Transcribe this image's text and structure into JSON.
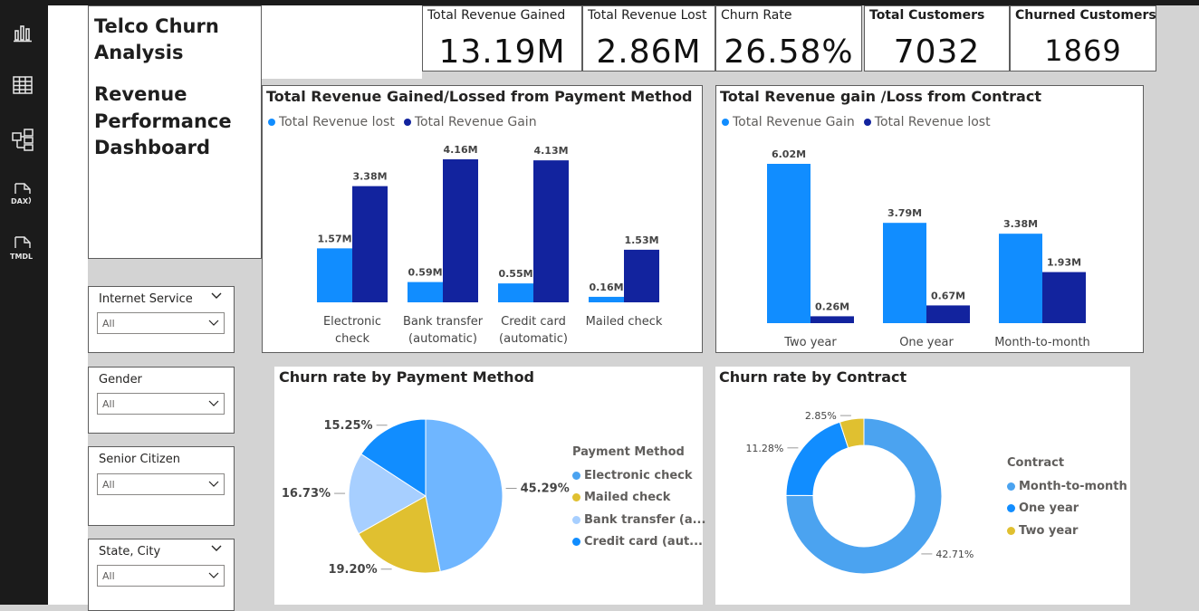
{
  "rail": {
    "icons": [
      "report-view-icon",
      "table-view-icon",
      "model-view-icon",
      "dax-query-icon",
      "tmdl-view-icon"
    ],
    "dax_label": "DAX",
    "tmdl_label": "TMDL"
  },
  "title": {
    "line1": "Telco Churn Analysis",
    "line2": "Revenue Performance Dashboard"
  },
  "kpis": [
    {
      "label": "Total Revenue Gained",
      "value": "13.19M"
    },
    {
      "label": "Total Revenue Lost",
      "value": "2.86M"
    },
    {
      "label": "Churn Rate",
      "value": "26.58%"
    },
    {
      "label": "Total Customers",
      "value": "7032"
    },
    {
      "label": "Churned Customers",
      "value": "1869"
    }
  ],
  "slicers": [
    {
      "title": "Internet Service",
      "value": "All"
    },
    {
      "title": "Gender",
      "value": "All"
    },
    {
      "title": "Senior Citizen",
      "value": "All"
    },
    {
      "title": "State, City",
      "value": "All"
    }
  ],
  "colors": {
    "light_blue": "#118DFF",
    "dark_blue": "#12239E",
    "pie_blue": "#118DFF",
    "pie_light": "#6FB6FF",
    "pie_lighter": "#A7CFFF",
    "pie_yellow": "#E0C030",
    "donut_main": "#4BA3F0"
  },
  "chart_data": [
    {
      "type": "bar",
      "title": "Total Revenue Gained/Lossed from Payment Method",
      "categories": [
        "Electronic check",
        "Bank transfer (automatic)",
        "Credit card (automatic)",
        "Mailed check"
      ],
      "series": [
        {
          "name": "Total Revenue lost",
          "values": [
            1.57,
            0.59,
            0.55,
            0.16
          ],
          "labels": [
            "1.57M",
            "0.59M",
            "0.55M",
            "0.16M"
          ]
        },
        {
          "name": "Total Revenue Gain",
          "values": [
            3.38,
            4.16,
            4.13,
            1.53
          ],
          "labels": [
            "3.38M",
            "4.16M",
            "4.13M",
            "1.53M"
          ]
        }
      ]
    },
    {
      "type": "bar",
      "title": "Total Revenue gain /Loss from Contract",
      "categories": [
        "Two year",
        "One year",
        "Month-to-month"
      ],
      "series": [
        {
          "name": "Total Revenue Gain",
          "values": [
            6.02,
            3.79,
            3.38
          ],
          "labels": [
            "6.02M",
            "3.79M",
            "3.38M"
          ]
        },
        {
          "name": "Total Revenue lost",
          "values": [
            0.26,
            0.67,
            1.93
          ],
          "labels": [
            "0.26M",
            "0.67M",
            "1.93M"
          ]
        }
      ]
    },
    {
      "type": "pie",
      "title": "Churn rate by Payment Method",
      "legend_title": "Payment Method",
      "slices": [
        {
          "name": "Electronic check",
          "legend": "Electronic check",
          "value": 45.29,
          "label": "45.29%"
        },
        {
          "name": "Mailed check",
          "legend": "Mailed check",
          "value": 19.2,
          "label": "19.20%"
        },
        {
          "name": "Bank transfer (automatic)",
          "legend": "Bank transfer (a...",
          "value": 16.73,
          "label": "16.73%"
        },
        {
          "name": "Credit card (automatic)",
          "legend": "Credit card (aut...",
          "value": 15.25,
          "label": "15.25%"
        }
      ]
    },
    {
      "type": "pie",
      "title": "Churn rate by Contract",
      "legend_title": "Contract",
      "slices": [
        {
          "name": "Month-to-month",
          "value": 42.71,
          "label": "42.71%"
        },
        {
          "name": "One year",
          "value": 11.28,
          "label": "11.28%"
        },
        {
          "name": "Two year",
          "value": 2.85,
          "label": "2.85%"
        }
      ]
    }
  ]
}
